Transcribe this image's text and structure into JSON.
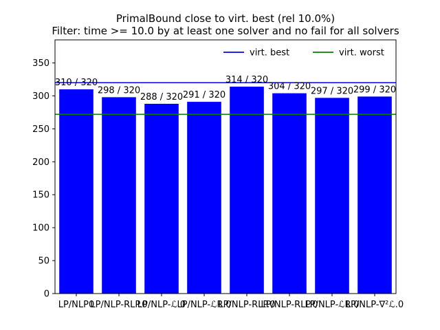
{
  "chart_data": {
    "type": "bar",
    "title": "PrimalBound close to virt. best (rel 10.0%)",
    "subtitle": "Filter: time >= 10.0 by at least one solver and no fail for all solvers",
    "xlabel": "",
    "ylabel": "",
    "categories": [
      "LP/NLP0",
      "LP/NLP-RLP.0",
      "LP/NLP-ℒ.0",
      "LP/NLP-ℒR.0",
      "LP/NLP-RLP.0",
      "LP/NLP-RLP.0",
      "LP/NLP-ℒR.0",
      "LP/NLP-∇²ℒ.0"
    ],
    "values": [
      310,
      298,
      288,
      291,
      314,
      304,
      297,
      299
    ],
    "data_labels": [
      "310 / 320",
      "298 / 320",
      "288 / 320",
      "291 / 320",
      "314 / 320",
      "304 / 320",
      "297 / 320",
      "299 / 320"
    ],
    "ylim": [
      0,
      385
    ],
    "yticks": [
      0,
      50,
      100,
      150,
      200,
      250,
      300,
      350
    ],
    "bar_color": "#0000ff",
    "reference_lines": [
      {
        "name": "virt. best",
        "value": 320,
        "color": "#0000ff"
      },
      {
        "name": "virt. worst",
        "value": 272,
        "color": "#008000"
      }
    ],
    "legend_position": "top-right",
    "grid": false
  }
}
